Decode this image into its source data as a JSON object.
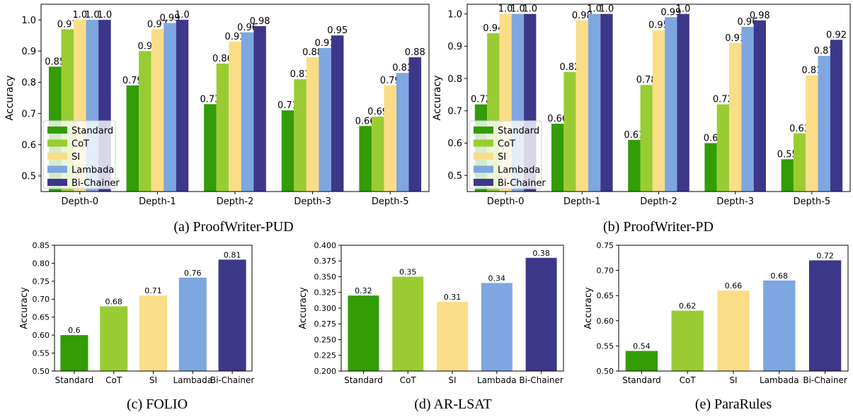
{
  "colors": {
    "Standard": "#339c06",
    "CoT": "#99cc33",
    "SI": "#fadd87",
    "Lambda": "#7ea6e0",
    "Bi-Chainer": "#3d3789"
  },
  "chart_data": [
    {
      "type": "bar",
      "caption": "(a) ProofWriter-PUD",
      "ylabel": "Accuracy",
      "ylim": [
        0.45,
        1.05
      ],
      "yticks": [
        "0.5",
        "0.6",
        "0.7",
        "0.8",
        "0.9",
        "1.0"
      ],
      "categories": [
        "Depth-0",
        "Depth-1",
        "Depth-2",
        "Depth-3",
        "Depth-5"
      ],
      "legend": "lower-left",
      "series": [
        {
          "name": "Standard",
          "values": [
            0.85,
            0.79,
            0.73,
            0.71,
            0.66
          ]
        },
        {
          "name": "CoT",
          "values": [
            0.97,
            0.9,
            0.86,
            0.81,
            0.69
          ]
        },
        {
          "name": "SI",
          "values": [
            1.0,
            0.97,
            0.93,
            0.88,
            0.79
          ]
        },
        {
          "name": "Lambada",
          "values": [
            1.0,
            0.99,
            0.96,
            0.91,
            0.83
          ]
        },
        {
          "name": "Bi-Chainer",
          "values": [
            1.0,
            1.0,
            0.98,
            0.95,
            0.88
          ]
        }
      ],
      "labels": [
        [
          "0.85",
          "0.97",
          "1.0",
          "1.0",
          "1.0"
        ],
        [
          "0.79",
          "0.9",
          "0.97",
          "0.99",
          "1.0"
        ],
        [
          "0.73",
          "0.86",
          "0.93",
          "0.96",
          "0.98"
        ],
        [
          "0.71",
          "0.81",
          "0.88",
          "0.91",
          "0.95"
        ],
        [
          "0.66",
          "0.69",
          "0.79",
          "0.83",
          "0.88"
        ]
      ]
    },
    {
      "type": "bar",
      "caption": "(b) ProofWriter-PD",
      "ylabel": "Accuracy",
      "ylim": [
        0.45,
        1.03
      ],
      "yticks": [
        "0.5",
        "0.6",
        "0.7",
        "0.8",
        "0.9",
        "1.0"
      ],
      "categories": [
        "Depth-0",
        "Depth-1",
        "Depth-2",
        "Depth-3",
        "Depth-5"
      ],
      "legend": "lower-left",
      "series": [
        {
          "name": "Standard",
          "values": [
            0.72,
            0.66,
            0.61,
            0.6,
            0.55
          ]
        },
        {
          "name": "CoT",
          "values": [
            0.94,
            0.82,
            0.78,
            0.72,
            0.63
          ]
        },
        {
          "name": "SI",
          "values": [
            1.0,
            0.98,
            0.95,
            0.91,
            0.81
          ]
        },
        {
          "name": "Lambada",
          "values": [
            1.0,
            1.0,
            0.99,
            0.96,
            0.87
          ]
        },
        {
          "name": "Bi-Chainer",
          "values": [
            1.0,
            1.0,
            1.0,
            0.98,
            0.92
          ]
        }
      ],
      "labels": [
        [
          "0.72",
          "0.94",
          "1.0",
          "1.0",
          "1.0"
        ],
        [
          "0.66",
          "0.82",
          "0.98",
          "1.0",
          "1.0"
        ],
        [
          "0.61",
          "0.78",
          "0.95",
          "0.99",
          "1.0"
        ],
        [
          "0.6",
          "0.72",
          "0.91",
          "0.96",
          "0.98"
        ],
        [
          "0.55",
          "0.63",
          "0.81",
          "0.87",
          "0.92"
        ]
      ]
    },
    {
      "type": "bar",
      "caption": "(c) FOLIO",
      "ylabel": "Accuracy",
      "ylim": [
        0.5,
        0.85
      ],
      "yticks": [
        "0.50",
        "0.55",
        "0.60",
        "0.65",
        "0.70",
        "0.75",
        "0.80",
        "0.85"
      ],
      "categories": [
        "Standard",
        "CoT",
        "SI",
        "Lambada",
        "Bi-Chainer"
      ],
      "values": [
        0.6,
        0.68,
        0.71,
        0.76,
        0.81
      ],
      "labels": [
        "0.6",
        "0.68",
        "0.71",
        "0.76",
        "0.81"
      ]
    },
    {
      "type": "bar",
      "caption": "(d) AR-LSAT",
      "ylabel": "Accuracy",
      "ylim": [
        0.2,
        0.4
      ],
      "yticks": [
        "0.200",
        "0.225",
        "0.250",
        "0.275",
        "0.300",
        "0.325",
        "0.350",
        "0.375",
        "0.400"
      ],
      "categories": [
        "Standard",
        "CoT",
        "SI",
        "Lambada",
        "Bi-Chainer"
      ],
      "values": [
        0.32,
        0.35,
        0.31,
        0.34,
        0.38
      ],
      "labels": [
        "0.32",
        "0.35",
        "0.31",
        "0.34",
        "0.38"
      ]
    },
    {
      "type": "bar",
      "caption": "(e) ParaRules",
      "ylabel": "Accuracy",
      "ylim": [
        0.5,
        0.75
      ],
      "yticks": [
        "0.50",
        "0.55",
        "0.60",
        "0.65",
        "0.70",
        "0.75"
      ],
      "categories": [
        "Standard",
        "CoT",
        "SI",
        "Lambada",
        "Bi-Chainer"
      ],
      "values": [
        0.54,
        0.62,
        0.66,
        0.68,
        0.72
      ],
      "labels": [
        "0.54",
        "0.62",
        "0.66",
        "0.68",
        "0.72"
      ]
    }
  ],
  "legend_labels": [
    "Standard",
    "CoT",
    "SI",
    "Lambada",
    "Bi-Chainer"
  ]
}
